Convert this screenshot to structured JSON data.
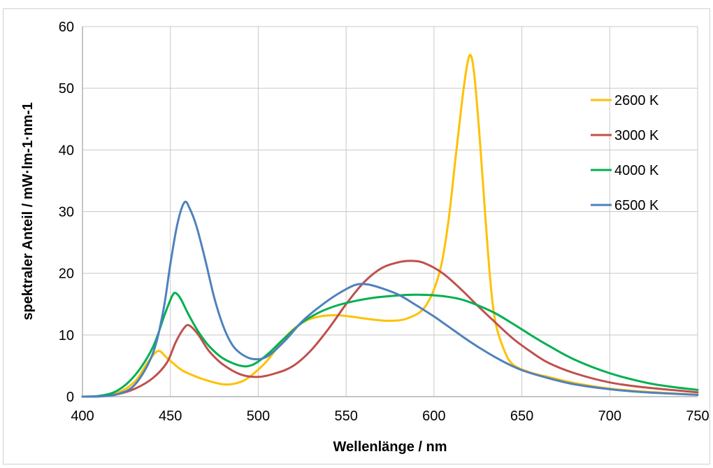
{
  "chart_data": {
    "type": "line",
    "title": "",
    "xlabel": "Wellenlänge / nm",
    "ylabel": "spektraler Anteil / mW·lm-1·nm-1",
    "xlim": [
      400,
      750
    ],
    "ylim": [
      0,
      60
    ],
    "xticks": [
      "400",
      "450",
      "500",
      "550",
      "600",
      "650",
      "700",
      "750"
    ],
    "yticks": [
      "0",
      "10",
      "20",
      "30",
      "40",
      "50",
      "60"
    ],
    "grid": true,
    "legend_position": "right",
    "series": [
      {
        "name": "2600 K",
        "color": "#FFC000",
        "points": [
          [
            400,
            0
          ],
          [
            410,
            0.1
          ],
          [
            420,
            0.6
          ],
          [
            430,
            2.5
          ],
          [
            437,
            5.5
          ],
          [
            443,
            7.4
          ],
          [
            448,
            6.3
          ],
          [
            455,
            4.6
          ],
          [
            460,
            3.8
          ],
          [
            470,
            2.7
          ],
          [
            480,
            2.0
          ],
          [
            488,
            2.2
          ],
          [
            495,
            3.2
          ],
          [
            505,
            5.8
          ],
          [
            515,
            9.5
          ],
          [
            525,
            12.0
          ],
          [
            535,
            13.0
          ],
          [
            545,
            13.2
          ],
          [
            555,
            12.9
          ],
          [
            565,
            12.5
          ],
          [
            575,
            12.3
          ],
          [
            585,
            12.7
          ],
          [
            595,
            14.6
          ],
          [
            603,
            20
          ],
          [
            608,
            28
          ],
          [
            612,
            38
          ],
          [
            616,
            48
          ],
          [
            619,
            54
          ],
          [
            621,
            55.3
          ],
          [
            623,
            52
          ],
          [
            626,
            42
          ],
          [
            629,
            30
          ],
          [
            632,
            19
          ],
          [
            635,
            12
          ],
          [
            640,
            7.5
          ],
          [
            645,
            5.2
          ],
          [
            655,
            3.9
          ],
          [
            665,
            3.2
          ],
          [
            680,
            2.2
          ],
          [
            700,
            1.3
          ],
          [
            720,
            0.8
          ],
          [
            750,
            0.3
          ]
        ]
      },
      {
        "name": "3000 K",
        "color": "#C0504D",
        "points": [
          [
            400,
            0
          ],
          [
            410,
            0.05
          ],
          [
            420,
            0.4
          ],
          [
            430,
            1.3
          ],
          [
            440,
            3.0
          ],
          [
            448,
            5.5
          ],
          [
            453,
            8.8
          ],
          [
            458,
            11.2
          ],
          [
            461,
            11.5
          ],
          [
            466,
            10.0
          ],
          [
            472,
            7.4
          ],
          [
            480,
            5.2
          ],
          [
            490,
            3.6
          ],
          [
            500,
            3.2
          ],
          [
            510,
            3.8
          ],
          [
            520,
            5.0
          ],
          [
            530,
            7.5
          ],
          [
            540,
            11.0
          ],
          [
            550,
            15.0
          ],
          [
            560,
            18.5
          ],
          [
            570,
            20.8
          ],
          [
            580,
            21.8
          ],
          [
            588,
            22.0
          ],
          [
            595,
            21.6
          ],
          [
            605,
            20.0
          ],
          [
            615,
            17.5
          ],
          [
            625,
            14.7
          ],
          [
            635,
            12.0
          ],
          [
            645,
            9.4
          ],
          [
            655,
            7.3
          ],
          [
            665,
            5.5
          ],
          [
            680,
            3.8
          ],
          [
            700,
            2.3
          ],
          [
            720,
            1.5
          ],
          [
            750,
            0.7
          ]
        ]
      },
      {
        "name": "4000 K",
        "color": "#00B050",
        "points": [
          [
            400,
            0
          ],
          [
            410,
            0.15
          ],
          [
            420,
            1.0
          ],
          [
            430,
            3.5
          ],
          [
            440,
            8.0
          ],
          [
            447,
            13.5
          ],
          [
            451,
            16.3
          ],
          [
            453,
            16.8
          ],
          [
            456,
            15.8
          ],
          [
            460,
            13.5
          ],
          [
            466,
            10.5
          ],
          [
            472,
            8.2
          ],
          [
            480,
            6.2
          ],
          [
            490,
            5.0
          ],
          [
            497,
            5.2
          ],
          [
            505,
            6.8
          ],
          [
            515,
            9.5
          ],
          [
            525,
            12.0
          ],
          [
            535,
            13.7
          ],
          [
            545,
            14.8
          ],
          [
            555,
            15.5
          ],
          [
            565,
            16.0
          ],
          [
            575,
            16.3
          ],
          [
            585,
            16.5
          ],
          [
            595,
            16.5
          ],
          [
            605,
            16.3
          ],
          [
            615,
            15.8
          ],
          [
            625,
            14.8
          ],
          [
            635,
            13.5
          ],
          [
            645,
            11.8
          ],
          [
            655,
            10.0
          ],
          [
            665,
            8.3
          ],
          [
            680,
            6.0
          ],
          [
            700,
            3.8
          ],
          [
            720,
            2.3
          ],
          [
            735,
            1.6
          ],
          [
            750,
            1.1
          ]
        ]
      },
      {
        "name": "6500 K",
        "color": "#4F81BD",
        "points": [
          [
            400,
            0
          ],
          [
            410,
            0.05
          ],
          [
            420,
            0.4
          ],
          [
            430,
            2.0
          ],
          [
            440,
            7.0
          ],
          [
            446,
            14.0
          ],
          [
            450,
            21.5
          ],
          [
            454,
            28.0
          ],
          [
            458,
            31.5
          ],
          [
            461,
            30.5
          ],
          [
            465,
            27.5
          ],
          [
            470,
            22.0
          ],
          [
            475,
            16.0
          ],
          [
            480,
            11.5
          ],
          [
            485,
            8.5
          ],
          [
            490,
            7.0
          ],
          [
            497,
            6.1
          ],
          [
            505,
            6.5
          ],
          [
            515,
            9.0
          ],
          [
            525,
            12.2
          ],
          [
            535,
            14.6
          ],
          [
            545,
            16.6
          ],
          [
            555,
            18.1
          ],
          [
            562,
            18.2
          ],
          [
            570,
            17.6
          ],
          [
            580,
            16.5
          ],
          [
            590,
            14.8
          ],
          [
            600,
            13.0
          ],
          [
            610,
            11.0
          ],
          [
            620,
            9.0
          ],
          [
            630,
            7.2
          ],
          [
            640,
            5.6
          ],
          [
            650,
            4.3
          ],
          [
            665,
            3.0
          ],
          [
            680,
            2.0
          ],
          [
            700,
            1.2
          ],
          [
            720,
            0.7
          ],
          [
            750,
            0.3
          ]
        ]
      }
    ]
  }
}
